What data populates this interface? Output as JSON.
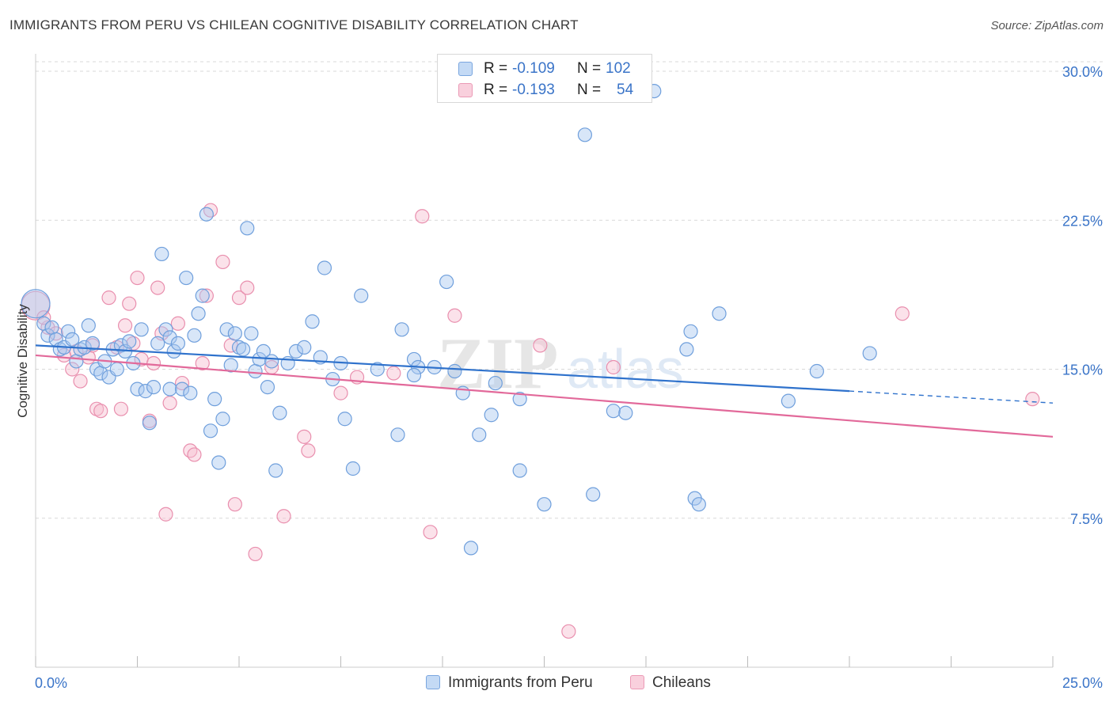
{
  "title": "IMMIGRANTS FROM PERU VS CHILEAN COGNITIVE DISABILITY CORRELATION CHART",
  "source": "Source: ZipAtlas.com",
  "watermark": {
    "zip": "ZIP",
    "atlas": "atlas"
  },
  "legend": {
    "r_label": "R =",
    "n_label": "N =",
    "rows": [
      {
        "r": "-0.109",
        "n": "102"
      },
      {
        "r": "-0.193",
        "n": "54"
      }
    ]
  },
  "series_labels": {
    "peru": "Immigrants from Peru",
    "chile": "Chileans"
  },
  "colors": {
    "peru_fill": "#a9c8f0",
    "peru_stroke": "#6f9fdc",
    "peru_line": "#2f72cc",
    "chile_fill": "#f6bfd0",
    "chile_stroke": "#e98fae",
    "chile_line": "#e2699a",
    "tick_label": "#3a74c8",
    "grid": "#d9d9d9"
  },
  "chart_data": {
    "type": "scatter",
    "title": "IMMIGRANTS FROM PERU VS CHILEAN COGNITIVE DISABILITY CORRELATION CHART",
    "xlabel": "",
    "ylabel": "Cognitive Disability",
    "xlim": [
      0,
      25
    ],
    "ylim": [
      0,
      30
    ],
    "x_tick_labels": [
      "0.0%",
      "25.0%"
    ],
    "y_ticks": [
      7.5,
      15.0,
      22.5,
      30.0
    ],
    "y_tick_labels": [
      "7.5%",
      "15.0%",
      "22.5%",
      "30.0%"
    ],
    "grid": "horizontal dashed",
    "legend_placement": "top-center",
    "series": [
      {
        "name": "Immigrants from Peru",
        "r": -0.109,
        "n": 102,
        "trend": {
          "x0": 0,
          "y0": 16.2,
          "x1": 20,
          "y1": 13.9,
          "dashed_to_x": 25,
          "dashed_to_y": 13.3
        },
        "points": [
          [
            0.0,
            18.3
          ],
          [
            0.2,
            17.3
          ],
          [
            0.3,
            16.7
          ],
          [
            0.4,
            17.1
          ],
          [
            0.5,
            16.5
          ],
          [
            0.6,
            16.0
          ],
          [
            0.7,
            16.1
          ],
          [
            0.8,
            16.9
          ],
          [
            0.9,
            16.5
          ],
          [
            1.0,
            15.4
          ],
          [
            1.1,
            16.0
          ],
          [
            1.2,
            16.1
          ],
          [
            1.3,
            17.2
          ],
          [
            1.4,
            16.3
          ],
          [
            1.5,
            15.0
          ],
          [
            1.6,
            14.8
          ],
          [
            1.7,
            15.4
          ],
          [
            1.8,
            14.6
          ],
          [
            1.9,
            16.0
          ],
          [
            2.0,
            15.0
          ],
          [
            2.1,
            16.2
          ],
          [
            2.2,
            15.9
          ],
          [
            2.3,
            16.4
          ],
          [
            2.4,
            15.3
          ],
          [
            2.5,
            14.0
          ],
          [
            2.6,
            17.0
          ],
          [
            2.7,
            13.9
          ],
          [
            2.8,
            12.3
          ],
          [
            2.9,
            14.1
          ],
          [
            3.0,
            16.3
          ],
          [
            3.1,
            20.8
          ],
          [
            3.2,
            17.0
          ],
          [
            3.3,
            16.6
          ],
          [
            3.3,
            14.0
          ],
          [
            3.4,
            15.9
          ],
          [
            3.5,
            16.3
          ],
          [
            3.6,
            14.0
          ],
          [
            3.7,
            19.6
          ],
          [
            3.8,
            13.8
          ],
          [
            3.9,
            16.7
          ],
          [
            4.0,
            17.8
          ],
          [
            4.1,
            18.7
          ],
          [
            4.2,
            22.8
          ],
          [
            4.3,
            11.9
          ],
          [
            4.4,
            13.5
          ],
          [
            4.5,
            10.3
          ],
          [
            4.6,
            12.5
          ],
          [
            4.7,
            17.0
          ],
          [
            4.8,
            15.2
          ],
          [
            4.9,
            16.8
          ],
          [
            5.0,
            16.1
          ],
          [
            5.1,
            16.0
          ],
          [
            5.2,
            22.1
          ],
          [
            5.3,
            16.8
          ],
          [
            5.4,
            14.9
          ],
          [
            5.5,
            15.5
          ],
          [
            5.6,
            15.9
          ],
          [
            5.7,
            14.1
          ],
          [
            5.8,
            15.4
          ],
          [
            5.9,
            9.9
          ],
          [
            6.0,
            12.8
          ],
          [
            6.2,
            15.3
          ],
          [
            6.4,
            15.9
          ],
          [
            6.6,
            16.1
          ],
          [
            6.8,
            17.4
          ],
          [
            7.0,
            15.6
          ],
          [
            7.1,
            20.1
          ],
          [
            7.3,
            14.5
          ],
          [
            7.5,
            15.3
          ],
          [
            7.6,
            12.5
          ],
          [
            7.8,
            10.0
          ],
          [
            8.0,
            18.7
          ],
          [
            8.4,
            15.0
          ],
          [
            8.9,
            11.7
          ],
          [
            9.0,
            17.0
          ],
          [
            9.3,
            15.5
          ],
          [
            9.4,
            15.1
          ],
          [
            9.3,
            14.7
          ],
          [
            9.8,
            15.1
          ],
          [
            10.1,
            19.4
          ],
          [
            10.3,
            14.9
          ],
          [
            10.7,
            6.0
          ],
          [
            10.9,
            11.7
          ],
          [
            11.2,
            12.7
          ],
          [
            11.3,
            14.3
          ],
          [
            11.9,
            13.5
          ],
          [
            11.9,
            9.9
          ],
          [
            12.5,
            8.2
          ],
          [
            13.5,
            26.8
          ],
          [
            13.7,
            8.7
          ],
          [
            14.2,
            12.9
          ],
          [
            15.2,
            29.0
          ],
          [
            16.0,
            16.0
          ],
          [
            16.2,
            8.5
          ],
          [
            16.1,
            16.9
          ],
          [
            16.8,
            17.8
          ],
          [
            18.5,
            13.4
          ],
          [
            19.2,
            14.9
          ],
          [
            20.5,
            15.8
          ],
          [
            16.3,
            8.2
          ],
          [
            14.5,
            12.8
          ],
          [
            10.5,
            13.8
          ]
        ]
      },
      {
        "name": "Chileans",
        "r": -0.193,
        "n": 54,
        "trend": {
          "x0": 0,
          "y0": 15.7,
          "x1": 25,
          "y1": 11.6
        },
        "points": [
          [
            0.0,
            18.2
          ],
          [
            0.3,
            17.1
          ],
          [
            0.5,
            16.8
          ],
          [
            0.7,
            15.7
          ],
          [
            0.9,
            15.0
          ],
          [
            1.1,
            14.4
          ],
          [
            1.3,
            15.6
          ],
          [
            1.4,
            16.2
          ],
          [
            1.5,
            13.0
          ],
          [
            1.6,
            12.9
          ],
          [
            1.8,
            18.6
          ],
          [
            2.0,
            16.1
          ],
          [
            2.1,
            13.0
          ],
          [
            2.2,
            17.2
          ],
          [
            2.3,
            18.3
          ],
          [
            2.4,
            16.3
          ],
          [
            2.5,
            19.6
          ],
          [
            2.6,
            15.5
          ],
          [
            2.8,
            12.4
          ],
          [
            3.0,
            19.1
          ],
          [
            3.1,
            16.8
          ],
          [
            3.2,
            7.7
          ],
          [
            3.3,
            13.3
          ],
          [
            3.5,
            17.3
          ],
          [
            3.6,
            14.3
          ],
          [
            3.8,
            10.9
          ],
          [
            3.9,
            10.7
          ],
          [
            4.1,
            15.3
          ],
          [
            4.2,
            18.7
          ],
          [
            4.3,
            23.0
          ],
          [
            4.6,
            20.4
          ],
          [
            4.8,
            16.2
          ],
          [
            4.9,
            8.2
          ],
          [
            5.0,
            18.6
          ],
          [
            5.2,
            19.1
          ],
          [
            5.4,
            5.7
          ],
          [
            5.8,
            15.1
          ],
          [
            6.1,
            7.6
          ],
          [
            6.6,
            11.6
          ],
          [
            6.7,
            10.9
          ],
          [
            7.5,
            13.8
          ],
          [
            7.9,
            14.6
          ],
          [
            8.8,
            14.8
          ],
          [
            9.5,
            22.7
          ],
          [
            9.7,
            6.8
          ],
          [
            10.3,
            17.7
          ],
          [
            12.4,
            16.2
          ],
          [
            13.1,
            1.8
          ],
          [
            14.2,
            15.1
          ],
          [
            21.3,
            17.8
          ],
          [
            24.5,
            13.5
          ],
          [
            0.2,
            17.6
          ],
          [
            1.0,
            15.9
          ],
          [
            2.9,
            15.3
          ]
        ]
      }
    ]
  }
}
